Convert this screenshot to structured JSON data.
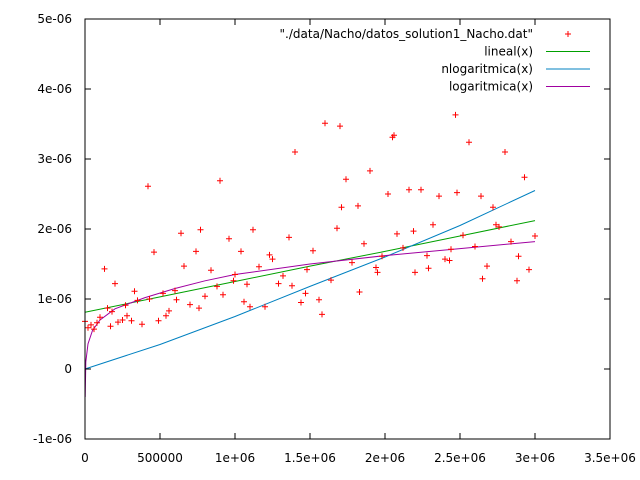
{
  "chart_data": {
    "type": "scatter",
    "title": "",
    "xlabel": "",
    "ylabel": "",
    "xlim": [
      0,
      3500000
    ],
    "ylim": [
      -1e-06,
      5e-06
    ],
    "grid": false,
    "legend_position": "top-right",
    "x_ticks": [
      {
        "value": 0,
        "label": "0"
      },
      {
        "value": 500000,
        "label": "500000"
      },
      {
        "value": 1000000,
        "label": "1e+06"
      },
      {
        "value": 1500000,
        "label": "1.5e+06"
      },
      {
        "value": 2000000,
        "label": "2e+06"
      },
      {
        "value": 2500000,
        "label": "2.5e+06"
      },
      {
        "value": 3000000,
        "label": "3e+06"
      },
      {
        "value": 3500000,
        "label": "3.5e+06"
      }
    ],
    "y_ticks": [
      {
        "value": -1e-06,
        "label": "-1e-06"
      },
      {
        "value": 0,
        "label": "0"
      },
      {
        "value": 1e-06,
        "label": "1e-06"
      },
      {
        "value": 2e-06,
        "label": "2e-06"
      },
      {
        "value": 3e-06,
        "label": "3e-06"
      },
      {
        "value": 4e-06,
        "label": "4e-06"
      },
      {
        "value": 5e-06,
        "label": "5e-06"
      }
    ],
    "scatter_series": {
      "name": "\"./data/Nacho/datos_solution1_Nacho.dat\"",
      "color": "#ff0000",
      "marker": "plus",
      "x": [
        0,
        20000,
        40000,
        60000,
        80000,
        100000,
        130000,
        150000,
        170000,
        200000,
        220000,
        250000,
        280000,
        310000,
        350000,
        380000,
        420000,
        430000,
        460000,
        490000,
        520000,
        560000,
        600000,
        640000,
        660000,
        700000,
        740000,
        770000,
        800000,
        840000,
        880000,
        900000,
        920000,
        960000,
        1000000,
        1040000,
        1080000,
        1100000,
        1120000,
        1160000,
        1200000,
        1250000,
        1290000,
        1320000,
        1360000,
        1400000,
        1440000,
        1480000,
        1520000,
        1560000,
        1580000,
        1600000,
        1640000,
        1680000,
        1700000,
        1740000,
        1780000,
        1820000,
        1860000,
        1900000,
        1940000,
        1980000,
        2020000,
        2050000,
        2060000,
        2080000,
        2120000,
        2160000,
        2200000,
        2240000,
        2280000,
        2320000,
        2360000,
        2400000,
        2440000,
        2470000,
        2480000,
        2520000,
        2560000,
        2600000,
        2640000,
        2680000,
        2720000,
        2760000,
        2800000,
        2840000,
        2880000,
        2930000,
        2960000,
        3000000,
        180000,
        330000,
        540000,
        760000,
        990000,
        1230000,
        1470000,
        1710000,
        1950000,
        2190000,
        2430000,
        2650000,
        2890000,
        270000,
        610000,
        1060000,
        1380000,
        1830000,
        2290000,
        2740000
      ],
      "y": [
        6.8e-07,
        5.9e-07,
        6.3e-07,
        5.7e-07,
        6.6e-07,
        7.4e-07,
        1.43e-06,
        8.7e-07,
        6.1e-07,
        1.22e-06,
        6.7e-07,
        7e-07,
        7.6e-07,
        6.9e-07,
        9.8e-07,
        6.4e-07,
        2.61e-06,
        1e-06,
        1.67e-06,
        6.9e-07,
        1.08e-06,
        8.3e-07,
        1.12e-06,
        1.94e-06,
        1.47e-06,
        9.2e-07,
        1.68e-06,
        1.99e-06,
        1.04e-06,
        1.41e-06,
        1.18e-06,
        2.69e-06,
        1.06e-06,
        1.86e-06,
        1.35e-06,
        1.68e-06,
        1.21e-06,
        8.9e-07,
        1.99e-06,
        1.46e-06,
        8.9e-07,
        1.57e-06,
        1.22e-06,
        1.33e-06,
        1.88e-06,
        3.1e-06,
        9.5e-07,
        1.42e-06,
        1.69e-06,
        9.9e-07,
        7.8e-07,
        3.51e-06,
        1.27e-06,
        2.01e-06,
        3.47e-06,
        2.71e-06,
        1.52e-06,
        2.33e-06,
        1.79e-06,
        2.83e-06,
        1.45e-06,
        1.61e-06,
        2.5e-06,
        3.31e-06,
        3.34e-06,
        1.93e-06,
        1.73e-06,
        2.56e-06,
        1.38e-06,
        2.56e-06,
        1.62e-06,
        2.06e-06,
        2.47e-06,
        1.57e-06,
        1.71e-06,
        3.63e-06,
        2.52e-06,
        1.91e-06,
        3.24e-06,
        1.75e-06,
        2.47e-06,
        1.47e-06,
        2.31e-06,
        2.03e-06,
        3.1e-06,
        1.82e-06,
        1.26e-06,
        2.74e-06,
        1.42e-06,
        1.9e-06,
        8.2e-07,
        1.11e-06,
        7.6e-07,
        8.7e-07,
        1.26e-06,
        1.63e-06,
        1.08e-06,
        2.31e-06,
        1.38e-06,
        1.97e-06,
        1.55e-06,
        1.29e-06,
        1.61e-06,
        9.1e-07,
        9.9e-07,
        9.6e-07,
        1.19e-06,
        1.1e-06,
        1.44e-06,
        2.06e-06
      ]
    },
    "line_series": [
      {
        "name": "lineal(x)",
        "color": "#00a000",
        "x": [
          0,
          500000,
          1000000,
          1500000,
          2000000,
          2500000,
          3000000
        ],
        "y": [
          8.1e-07,
          1.03e-06,
          1.25e-06,
          1.47e-06,
          1.68e-06,
          1.9e-06,
          2.12e-06
        ]
      },
      {
        "name": "nlogaritmica(x)",
        "color": "#0080c0",
        "x": [
          0,
          500000,
          1000000,
          1500000,
          2000000,
          2500000,
          3000000
        ],
        "y": [
          0,
          3.5e-07,
          7.5e-07,
          1.18e-06,
          1.6e-06,
          2.05e-06,
          2.55e-06
        ]
      },
      {
        "name": "logaritmica(x)",
        "color": "#a000a0",
        "x": [
          1000,
          5000,
          20000,
          50000,
          100000,
          200000,
          400000,
          600000,
          800000,
          1000000,
          1500000,
          2000000,
          2500000,
          3000000
        ],
        "y": [
          -4e-07,
          1e-07,
          3.6e-07,
          5.5e-07,
          7e-07,
          8.6e-07,
          1.02e-06,
          1.15e-06,
          1.26e-06,
          1.35e-06,
          1.5e-06,
          1.62e-06,
          1.72e-06,
          1.82e-06
        ]
      }
    ]
  }
}
